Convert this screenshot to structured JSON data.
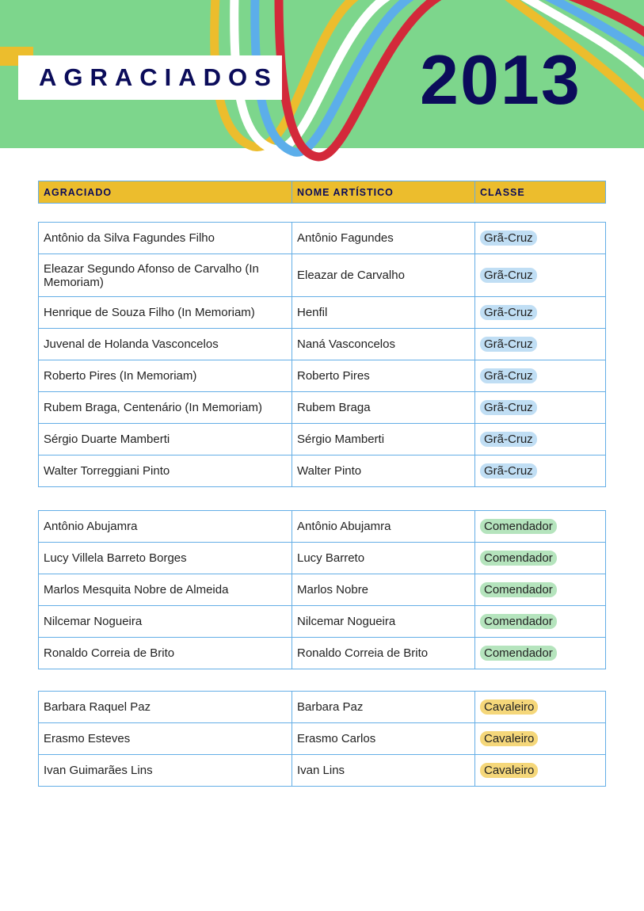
{
  "header": {
    "title": "AGRACIADOS",
    "year": "2013"
  },
  "columns": [
    "AGRACIADO",
    "NOME ARTÍSTICO",
    "CLASSE"
  ],
  "colors": {
    "banner": "#7dd68c",
    "accent": "#ecbd2d",
    "navy": "#0b0c5a",
    "gra_cruz": "#c0def4",
    "comendador": "#b5e4bd",
    "cavaleiro": "#f5d77a"
  },
  "groups": [
    {
      "class": "gc",
      "rows": [
        [
          "Antônio da Silva Fagundes Filho",
          "Antônio Fagundes",
          "Grã-Cruz"
        ],
        [
          "Eleazar Segundo Afonso de Carvalho (In Memoriam)",
          "Eleazar de Carvalho",
          "Grã-Cruz"
        ],
        [
          "Henrique de Souza Filho (In Memoriam)",
          "Henfil",
          "Grã-Cruz"
        ],
        [
          "Juvenal de Holanda Vasconcelos",
          "Naná Vasconcelos",
          "Grã-Cruz"
        ],
        [
          "Roberto Pires (In Memoriam)",
          "Roberto Pires",
          "Grã-Cruz"
        ],
        [
          "Rubem Braga, Centenário (In Memoriam)",
          "Rubem Braga",
          "Grã-Cruz"
        ],
        [
          "Sérgio Duarte Mamberti",
          "Sérgio Mamberti",
          "Grã-Cruz"
        ],
        [
          "Walter Torreggiani Pinto",
          "Walter Pinto",
          "Grã-Cruz"
        ]
      ]
    },
    {
      "class": "co",
      "rows": [
        [
          "Antônio Abujamra",
          "Antônio Abujamra",
          "Comendador"
        ],
        [
          "Lucy Villela Barreto Borges",
          "Lucy Barreto",
          "Comendador"
        ],
        [
          "Marlos Mesquita Nobre de Almeida",
          "Marlos Nobre",
          "Comendador"
        ],
        [
          "Nilcemar Nogueira",
          "Nilcemar Nogueira",
          "Comendador"
        ],
        [
          "Ronaldo Correia de Brito",
          "Ronaldo Correia de Brito",
          "Comendador"
        ]
      ]
    },
    {
      "class": "ca",
      "rows": [
        [
          "Barbara Raquel Paz",
          "Barbara Paz",
          "Cavaleiro"
        ],
        [
          "Erasmo Esteves",
          "Erasmo Carlos",
          "Cavaleiro"
        ],
        [
          "Ivan Guimarães Lins",
          "Ivan Lins",
          "Cavaleiro"
        ]
      ]
    }
  ]
}
